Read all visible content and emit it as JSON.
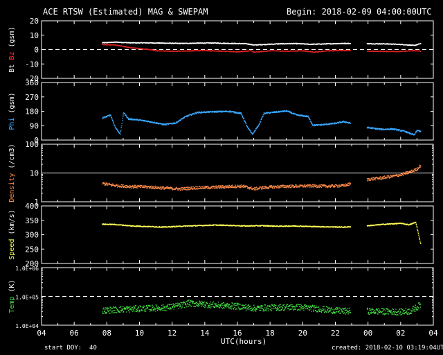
{
  "header": {
    "title": "ACE RTSW (Estimated) MAG & SWEPAM",
    "begin": "Begin: 2018-02-09 04:00:00UTC"
  },
  "footer": {
    "start_doy": "start DOY:  40",
    "created": "created: 2018-02-10 03:19:04UTC"
  },
  "chart_data": {
    "type": "scatter",
    "title": "ACE RTSW (Estimated) MAG & SWEPAM",
    "xlabel": "UTC(hours)",
    "x_ticks": [
      "04",
      "06",
      "08",
      "10",
      "12",
      "14",
      "16",
      "18",
      "20",
      "22",
      "00",
      "02",
      "04"
    ],
    "xlim": [
      4,
      28
    ],
    "data_gap_hours": [
      22.9,
      23.9
    ],
    "panels": [
      {
        "id": "mag",
        "ylabel_parts": [
          {
            "text": "Bt",
            "color": "#ffffff"
          },
          {
            "text": " ",
            "color": "#ffffff"
          },
          {
            "text": "Bz",
            "color": "#ff3333"
          },
          {
            "text": " (gsm)",
            "color": "#ffffff"
          }
        ],
        "ylim": [
          -20,
          20
        ],
        "yscale": "linear",
        "yticks": [
          "20",
          "10",
          "0",
          "-10",
          "-20"
        ],
        "ytick_values": [
          20,
          10,
          0,
          -10,
          -20
        ],
        "ref_line": {
          "value": 0,
          "style": "dashed"
        },
        "series": [
          {
            "name": "Bt",
            "color": "#ffffff",
            "points": [
              [
                7.7,
                5.0
              ],
              [
                8.5,
                5.5
              ],
              [
                9.5,
                5.0
              ],
              [
                10.5,
                5.0
              ],
              [
                11.5,
                4.8
              ],
              [
                12.5,
                4.6
              ],
              [
                13.5,
                4.8
              ],
              [
                14.5,
                4.9
              ],
              [
                15.5,
                4.6
              ],
              [
                16.5,
                4.4
              ],
              [
                17.0,
                3.5
              ],
              [
                17.5,
                3.8
              ],
              [
                18.5,
                4.3
              ],
              [
                19.5,
                4.5
              ],
              [
                20.5,
                4.0
              ],
              [
                21.5,
                4.3
              ],
              [
                22.5,
                4.6
              ],
              [
                24.0,
                4.4
              ],
              [
                25.0,
                4.3
              ],
              [
                26.0,
                3.9
              ],
              [
                26.8,
                3.2
              ],
              [
                27.2,
                4.5
              ]
            ]
          },
          {
            "name": "Bz",
            "color": "#dd2222",
            "points": [
              [
                7.7,
                3.8
              ],
              [
                8.5,
                3.5
              ],
              [
                9.0,
                2.5
              ],
              [
                9.5,
                1.5
              ],
              [
                10.5,
                0.5
              ],
              [
                11.0,
                -0.5
              ],
              [
                12.0,
                -0.8
              ],
              [
                13.0,
                -0.6
              ],
              [
                14.0,
                -0.3
              ],
              [
                15.0,
                -0.8
              ],
              [
                16.0,
                -1.2
              ],
              [
                16.8,
                -0.5
              ],
              [
                17.0,
                -1.5
              ],
              [
                18.0,
                -0.5
              ],
              [
                19.0,
                -0.8
              ],
              [
                20.0,
                -0.5
              ],
              [
                20.7,
                -1.5
              ],
              [
                21.5,
                -0.5
              ],
              [
                22.5,
                -0.3
              ],
              [
                24.0,
                -0.8
              ],
              [
                25.0,
                -0.9
              ],
              [
                26.0,
                -1.0
              ],
              [
                26.8,
                -0.4
              ],
              [
                27.2,
                -0.8
              ]
            ]
          }
        ]
      },
      {
        "id": "phi",
        "ylabel_parts": [
          {
            "text": "Phi",
            "color": "#3aa8ff"
          },
          {
            "text": " (gsm)",
            "color": "#ffffff"
          }
        ],
        "ylim": [
          0,
          360
        ],
        "yscale": "linear",
        "yticks": [
          "360",
          "270",
          "180",
          "90",
          "0"
        ],
        "ytick_values": [
          360,
          270,
          180,
          90,
          0
        ],
        "series": [
          {
            "name": "Phi",
            "color": "#3aa8ff",
            "points": [
              [
                7.7,
                140
              ],
              [
                8.2,
                160
              ],
              [
                8.5,
                80
              ],
              [
                8.8,
                40
              ],
              [
                9.0,
                175
              ],
              [
                9.3,
                135
              ],
              [
                9.8,
                130
              ],
              [
                10.5,
                120
              ],
              [
                11.0,
                110
              ],
              [
                11.5,
                100
              ],
              [
                12.2,
                110
              ],
              [
                12.8,
                150
              ],
              [
                13.5,
                175
              ],
              [
                14.5,
                180
              ],
              [
                15.5,
                182
              ],
              [
                16.2,
                170
              ],
              [
                16.6,
                80
              ],
              [
                16.9,
                40
              ],
              [
                17.3,
                100
              ],
              [
                17.6,
                170
              ],
              [
                18.5,
                180
              ],
              [
                19.0,
                185
              ],
              [
                19.6,
                160
              ],
              [
                20.3,
                150
              ],
              [
                20.6,
                95
              ],
              [
                21.3,
                100
              ],
              [
                22.0,
                108
              ],
              [
                22.5,
                118
              ],
              [
                24.0,
                80
              ],
              [
                24.8,
                70
              ],
              [
                25.5,
                72
              ],
              [
                26.2,
                58
              ],
              [
                26.8,
                35
              ],
              [
                27.0,
                65
              ],
              [
                27.2,
                55
              ]
            ]
          }
        ]
      },
      {
        "id": "density",
        "ylabel_parts": [
          {
            "text": "Density",
            "color": "#ff8c4a"
          },
          {
            "text": " (/cm3)",
            "color": "#ffffff"
          }
        ],
        "ylim": [
          1,
          100
        ],
        "yscale": "log",
        "yticks": [
          "100",
          "10",
          "1"
        ],
        "ytick_values": [
          100,
          10,
          1
        ],
        "ref_line": {
          "value": 10,
          "style": "solid"
        },
        "series": [
          {
            "name": "Density",
            "color": "#ff8c4a",
            "points": [
              [
                7.7,
                4.5
              ],
              [
                8.5,
                3.8
              ],
              [
                9.5,
                3.5
              ],
              [
                10.5,
                3.4
              ],
              [
                11.5,
                3.1
              ],
              [
                12.5,
                2.9
              ],
              [
                13.5,
                3.2
              ],
              [
                14.5,
                3.3
              ],
              [
                15.5,
                3.5
              ],
              [
                16.3,
                3.6
              ],
              [
                17.0,
                2.9
              ],
              [
                17.5,
                3.2
              ],
              [
                18.5,
                3.5
              ],
              [
                19.5,
                3.6
              ],
              [
                20.5,
                3.7
              ],
              [
                21.5,
                3.6
              ],
              [
                22.5,
                3.8
              ],
              [
                24.0,
                6.2
              ],
              [
                24.8,
                7.0
              ],
              [
                25.5,
                8.0
              ],
              [
                26.0,
                9.0
              ],
              [
                26.6,
                11.5
              ],
              [
                27.0,
                14.5
              ],
              [
                27.2,
                19.0
              ]
            ]
          }
        ]
      },
      {
        "id": "speed",
        "ylabel_parts": [
          {
            "text": "Speed",
            "color": "#ffff55"
          },
          {
            "text": " (km/s)",
            "color": "#ffffff"
          }
        ],
        "ylim": [
          200,
          400
        ],
        "yscale": "linear",
        "yticks": [
          "400",
          "350",
          "300",
          "250",
          "200"
        ],
        "ytick_values": [
          400,
          350,
          300,
          250,
          200
        ],
        "series": [
          {
            "name": "Speed",
            "color": "#ffff55",
            "points": [
              [
                7.7,
                338
              ],
              [
                8.5,
                337
              ],
              [
                9.5,
                332
              ],
              [
                10.5,
                330
              ],
              [
                11.5,
                328
              ],
              [
                12.5,
                331
              ],
              [
                13.5,
                333
              ],
              [
                14.5,
                335
              ],
              [
                15.5,
                334
              ],
              [
                16.5,
                332
              ],
              [
                17.5,
                333
              ],
              [
                18.5,
                331
              ],
              [
                19.5,
                332
              ],
              [
                20.5,
                330
              ],
              [
                21.5,
                329
              ],
              [
                22.5,
                328
              ],
              [
                24.0,
                333
              ],
              [
                25.0,
                338
              ],
              [
                26.0,
                341
              ],
              [
                26.5,
                336
              ],
              [
                26.9,
                345
              ],
              [
                27.2,
                270
              ]
            ]
          }
        ]
      },
      {
        "id": "temp",
        "ylabel_parts": [
          {
            "text": "Temp",
            "color": "#44dd44"
          },
          {
            "text": " (K)",
            "color": "#ffffff"
          }
        ],
        "ylim": [
          10000,
          1000000
        ],
        "yscale": "log",
        "yticks": [
          "1.0E+06",
          "1.0E+05",
          "1.0E+04"
        ],
        "ytick_values": [
          1000000,
          100000,
          10000
        ],
        "ref_line": {
          "value": 100000,
          "style": "dashed"
        },
        "series": [
          {
            "name": "Temp",
            "color": "#44dd44",
            "points": [
              [
                7.7,
                33000
              ],
              [
                8.5,
                36000
              ],
              [
                9.5,
                38000
              ],
              [
                10.5,
                40000
              ],
              [
                11.5,
                42000
              ],
              [
                12.5,
                50000
              ],
              [
                13.0,
                60000
              ],
              [
                14.0,
                55000
              ],
              [
                15.0,
                50000
              ],
              [
                16.0,
                47000
              ],
              [
                17.0,
                40000
              ],
              [
                18.0,
                42000
              ],
              [
                19.0,
                44000
              ],
              [
                20.0,
                43000
              ],
              [
                21.0,
                38000
              ],
              [
                22.0,
                33000
              ],
              [
                22.5,
                32000
              ],
              [
                24.0,
                32000
              ],
              [
                25.0,
                31000
              ],
              [
                26.0,
                30000
              ],
              [
                26.6,
                32000
              ],
              [
                27.0,
                45000
              ],
              [
                27.2,
                55000
              ]
            ]
          }
        ]
      }
    ]
  }
}
